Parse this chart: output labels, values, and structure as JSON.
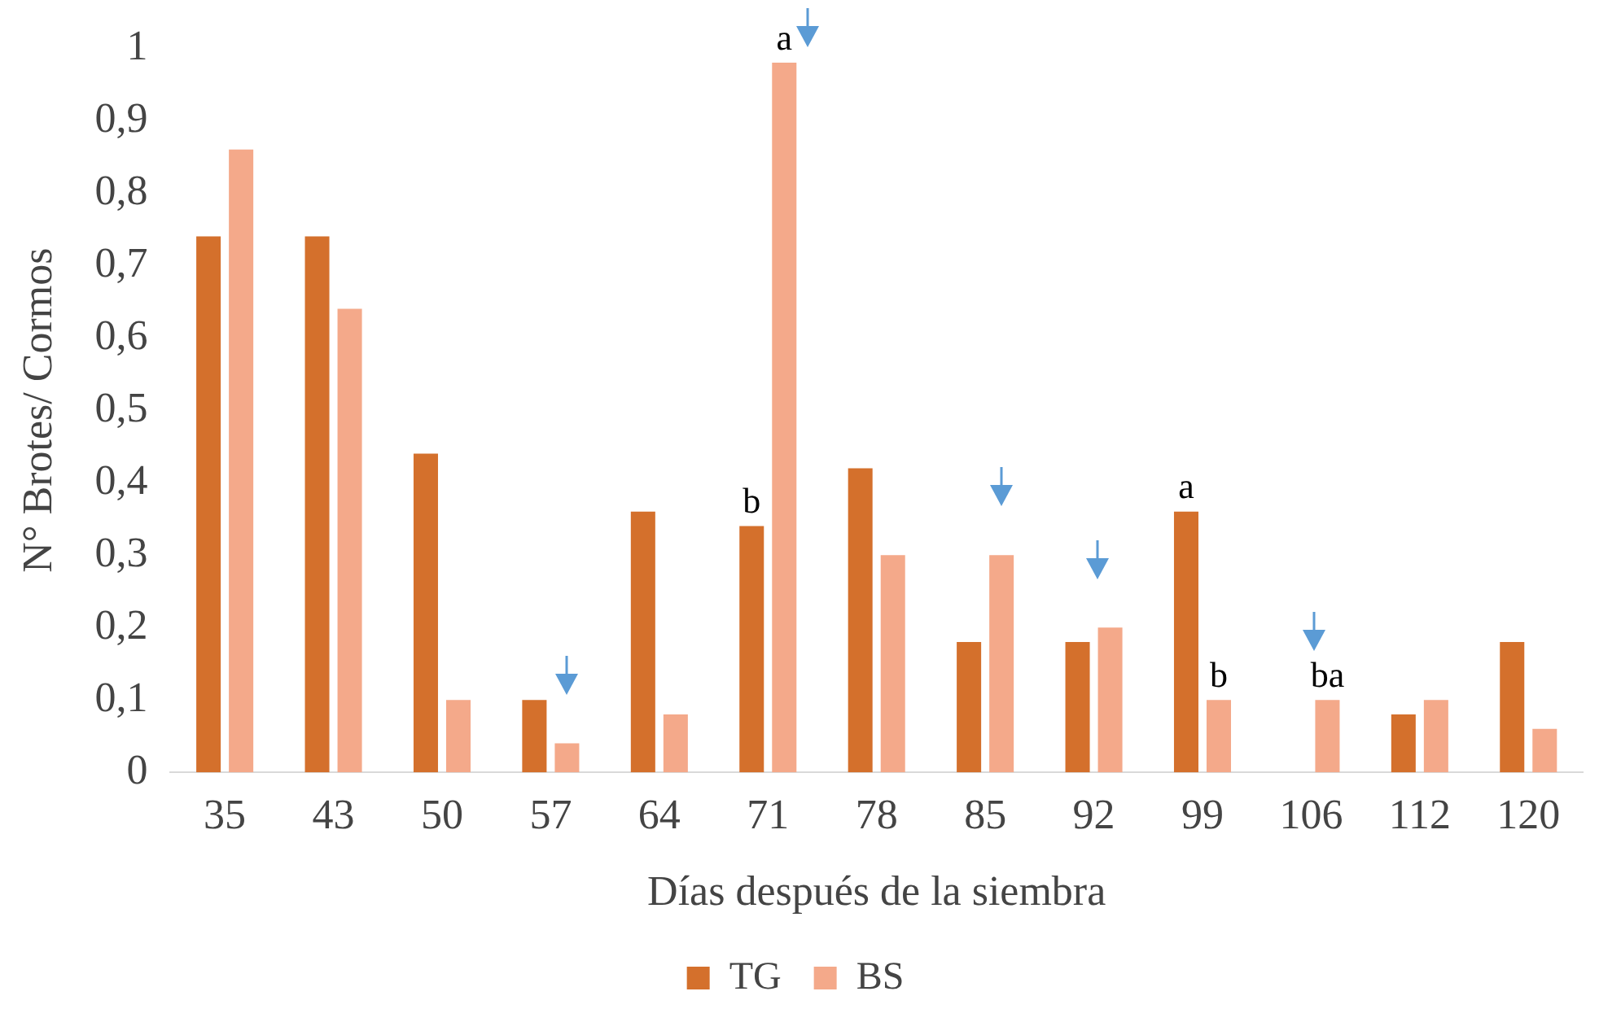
{
  "chart_data": {
    "type": "bar",
    "xlabel": "Días después de la siembra",
    "ylabel": "N° Brotes/ Cormos",
    "categories": [
      "35",
      "43",
      "50",
      "57",
      "64",
      "71",
      "78",
      "85",
      "92",
      "99",
      "106",
      "112",
      "120"
    ],
    "series": [
      {
        "name": "TG",
        "color": "#d4702c",
        "values": [
          0.74,
          0.74,
          0.44,
          0.1,
          0.36,
          0.34,
          0.42,
          0.18,
          0.18,
          0.36,
          0,
          0.08,
          0.18
        ]
      },
      {
        "name": "BS",
        "color": "#f4a98a",
        "values": [
          0.86,
          0.64,
          0.1,
          0.04,
          0.08,
          0.98,
          0.3,
          0.3,
          0.2,
          0.1,
          0.1,
          0.1,
          0.06
        ]
      }
    ],
    "ylim": [
      0,
      1
    ],
    "yticks": [
      0,
      {
        "value": 0.1,
        "label": "0,1"
      },
      {
        "value": 0.2,
        "label": "0,2"
      },
      {
        "value": 0.3,
        "label": "0,3"
      },
      {
        "value": 0.4,
        "label": "0,4"
      },
      {
        "value": 0.5,
        "label": "0,5"
      },
      {
        "value": 0.6,
        "label": "0,6"
      },
      {
        "value": 0.7,
        "label": "0,7"
      },
      {
        "value": 0.8,
        "label": "0,8"
      },
      {
        "value": 0.9,
        "label": "0,9"
      },
      1
    ],
    "annotations": [
      {
        "text": "b",
        "x": "71",
        "y": 0.34
      },
      {
        "text": "a",
        "x": "71",
        "y": 0.98
      },
      {
        "text": "a",
        "x": "99",
        "y": 0.36
      },
      {
        "text": "b",
        "x": "99",
        "y": 0.1
      },
      {
        "text": "ba",
        "x": "106",
        "y": 0.1
      }
    ],
    "grid": false,
    "legend": "bottom"
  }
}
